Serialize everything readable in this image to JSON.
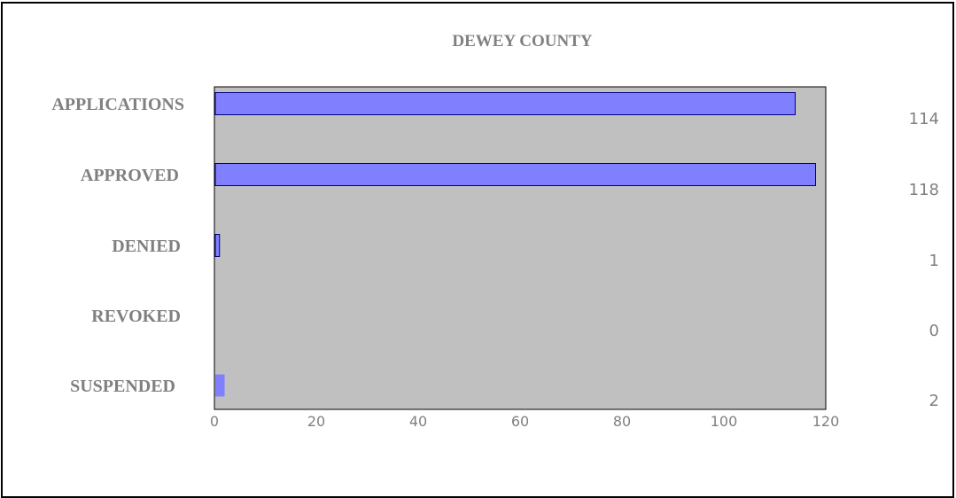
{
  "chart_data": {
    "type": "bar",
    "orientation": "horizontal",
    "title": "DEWEY COUNTY",
    "categories": [
      "APPLICATIONS",
      "APPROVED",
      "DENIED",
      "REVOKED",
      "SUSPENDED"
    ],
    "values": [
      114,
      118,
      1,
      0,
      2
    ],
    "value_labels": [
      "114",
      "118",
      "1",
      "0",
      "2"
    ],
    "xlim": [
      0,
      120
    ],
    "xticks": [
      "0",
      "20",
      "40",
      "60",
      "80",
      "100",
      "120"
    ],
    "grid": false,
    "legend": "none",
    "colors": {
      "plot_background": "#c0c0c0",
      "bar_fill": "#8080ff",
      "bar_stroke": "#000080",
      "text": "#808080"
    }
  }
}
